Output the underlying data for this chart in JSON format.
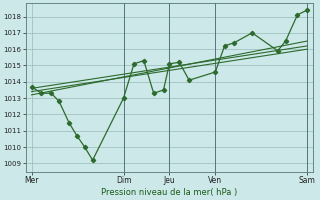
{
  "xlabel": "Pression niveau de la mer( hPa )",
  "bg_color": "#cce8e8",
  "grid_color": "#99bbbb",
  "line_color": "#2d6a2d",
  "ylim": [
    1008.5,
    1018.8
  ],
  "yticks": [
    1009,
    1010,
    1011,
    1012,
    1013,
    1014,
    1015,
    1016,
    1017,
    1018
  ],
  "xlim": [
    -0.3,
    14.3
  ],
  "xtick_positions": [
    0,
    4.67,
    7.0,
    9.33,
    14.0
  ],
  "xtick_labels": [
    "Mer",
    "Dim",
    "Jeu",
    "Ven",
    "Sam"
  ],
  "vlines": [
    4.67,
    7.0,
    9.33,
    14.0
  ],
  "data_x": [
    0,
    0.5,
    1.0,
    1.4,
    1.9,
    2.3,
    2.7,
    3.1,
    4.67,
    5.2,
    5.7,
    6.2,
    6.7,
    7.0,
    7.5,
    8.0,
    9.33,
    9.8,
    10.3,
    11.2,
    12.5,
    12.9,
    13.5,
    14.0
  ],
  "data_y": [
    1013.7,
    1013.3,
    1013.3,
    1012.8,
    1011.5,
    1010.7,
    1010.0,
    1009.2,
    1013.0,
    1015.1,
    1015.3,
    1013.3,
    1013.5,
    1015.1,
    1015.2,
    1014.1,
    1014.6,
    1016.2,
    1016.4,
    1017.0,
    1015.9,
    1016.5,
    1018.1,
    1018.4
  ],
  "trend_lines": [
    {
      "x": [
        0,
        14.0
      ],
      "y": [
        1013.6,
        1016.2
      ]
    },
    {
      "x": [
        0,
        14.0
      ],
      "y": [
        1013.4,
        1016.0
      ]
    },
    {
      "x": [
        0,
        14.0
      ],
      "y": [
        1013.2,
        1016.5
      ]
    }
  ]
}
